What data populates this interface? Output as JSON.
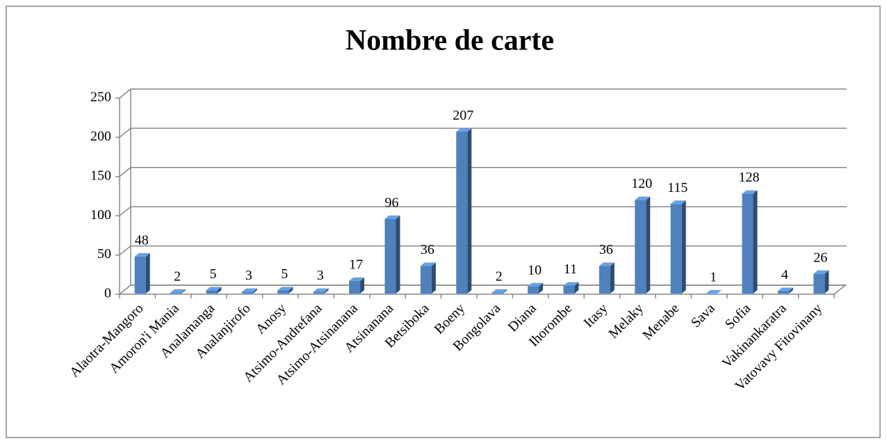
{
  "chart_data": {
    "type": "bar",
    "title": "Nombre de carte",
    "categories": [
      "Alaotra-Mangoro",
      "Amoron'i Mania",
      "Analamanga",
      "Analanjirofo",
      "Anosy",
      "Atsimo-Andrefana",
      "Atsimo-Atsinanana",
      "Atsinanana",
      "Betsiboka",
      "Boeny",
      "Bongolava",
      "Diana",
      "Ihorombe",
      "Itasy",
      "Melaky",
      "Menabe",
      "Sava",
      "Sofia",
      "Vakinankaratra",
      "Vatovavy Fitovinany"
    ],
    "values": [
      48,
      2,
      5,
      3,
      5,
      3,
      17,
      96,
      36,
      207,
      2,
      10,
      11,
      36,
      120,
      115,
      1,
      128,
      4,
      26
    ],
    "color": "#4f81bd",
    "ylim": [
      0,
      250
    ],
    "yticks": [
      0,
      50,
      100,
      150,
      200,
      250
    ],
    "grid": true
  }
}
